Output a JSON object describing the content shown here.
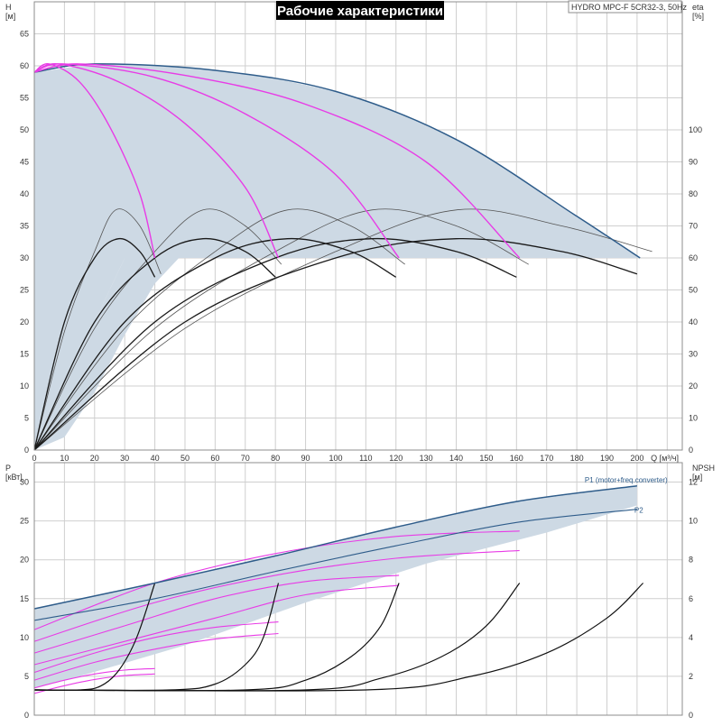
{
  "title": "Рабочие характеристики",
  "model": "HYDRO MPC-F 5CR32-3, 50Hz",
  "colors": {
    "envelope": "#cdd9e4",
    "max_curve": "#2e5c8a",
    "speed_curve": "#e83be6",
    "eta_full": "#555555",
    "eta_min": "#1a1a1a",
    "npsh": "#111111"
  },
  "chart_data": [
    {
      "id": "head",
      "type": "line",
      "xlabel": "Q [м³/ч]",
      "ylabel_left": "H\n[м]",
      "ylabel_right": "eta\n[%]",
      "xlim": [
        0,
        215
      ],
      "ylim_left": [
        0,
        70
      ],
      "ylim_right": [
        0,
        140
      ],
      "x_ticks": [
        0,
        10,
        20,
        30,
        40,
        50,
        60,
        70,
        80,
        90,
        100,
        110,
        120,
        130,
        140,
        150,
        160,
        170,
        180,
        190,
        200
      ],
      "y_ticks_left": [
        0,
        5,
        10,
        15,
        20,
        25,
        30,
        35,
        40,
        45,
        50,
        55,
        60,
        65
      ],
      "y_ticks_right": [
        0,
        10,
        20,
        30,
        40,
        50,
        60,
        70,
        80,
        90,
        100
      ],
      "grid": true,
      "envelope": {
        "upper": [
          [
            0,
            59
          ],
          [
            20,
            60.3
          ],
          [
            40,
            60
          ],
          [
            60,
            59.3
          ],
          [
            80,
            58
          ],
          [
            100,
            56
          ],
          [
            120,
            52.8
          ],
          [
            140,
            48.5
          ],
          [
            160,
            43
          ],
          [
            180,
            36.5
          ],
          [
            201,
            30
          ],
          [
            30,
            30
          ],
          [
            0,
            0
          ]
        ],
        "lower": [
          [
            0,
            0
          ],
          [
            10,
            2
          ],
          [
            20,
            9
          ],
          [
            30,
            18
          ],
          [
            40,
            26
          ],
          [
            48,
            30
          ]
        ]
      },
      "head_curves": [
        {
          "points": [
            [
              0,
              59
            ],
            [
              20,
              60.3
            ],
            [
              60,
              59.3
            ],
            [
              100,
              56
            ],
            [
              140,
              48.5
            ],
            [
              180,
              36.5
            ],
            [
              201,
              30
            ]
          ]
        },
        {
          "points": [
            [
              0,
              59
            ],
            [
              15,
              60.3
            ],
            [
              50,
              58.5
            ],
            [
              90,
              54
            ],
            [
              130,
              45
            ],
            [
              161,
              30
            ]
          ]
        },
        {
          "points": [
            [
              0,
              59
            ],
            [
              10,
              60.3
            ],
            [
              40,
              58.2
            ],
            [
              70,
              52.5
            ],
            [
              100,
              43
            ],
            [
              121,
              30
            ]
          ]
        },
        {
          "points": [
            [
              0,
              59
            ],
            [
              8,
              60.3
            ],
            [
              28,
              57.5
            ],
            [
              50,
              51
            ],
            [
              70,
              41
            ],
            [
              81,
              30
            ]
          ]
        },
        {
          "points": [
            [
              0,
              59
            ],
            [
              5,
              60.3
            ],
            [
              15,
              57.5
            ],
            [
              25,
              50.5
            ],
            [
              35,
              40
            ],
            [
              40,
              30
            ]
          ]
        }
      ],
      "eta_full_curves": [
        {
          "points": [
            [
              0,
              0
            ],
            [
              10,
              37
            ],
            [
              20,
              62
            ],
            [
              27,
              75
            ],
            [
              35,
              70
            ],
            [
              42,
              55
            ]
          ]
        },
        {
          "points": [
            [
              0,
              0
            ],
            [
              20,
              38
            ],
            [
              40,
              62
            ],
            [
              56,
              75
            ],
            [
              70,
              70
            ],
            [
              82,
              58
            ]
          ]
        },
        {
          "points": [
            [
              0,
              0
            ],
            [
              30,
              38
            ],
            [
              60,
              62
            ],
            [
              84,
              75
            ],
            [
              105,
              70
            ],
            [
              123,
              58
            ]
          ]
        },
        {
          "points": [
            [
              0,
              0
            ],
            [
              40,
              38
            ],
            [
              80,
              62
            ],
            [
              112,
              75
            ],
            [
              140,
              70
            ],
            [
              164,
              58
            ]
          ]
        },
        {
          "points": [
            [
              0,
              0
            ],
            [
              50,
              38
            ],
            [
              100,
              62
            ],
            [
              140,
              75
            ],
            [
              175,
              70
            ],
            [
              205,
              62
            ]
          ]
        }
      ],
      "eta_min_curves": [
        {
          "points": [
            [
              0,
              0
            ],
            [
              10,
              40
            ],
            [
              20,
              60
            ],
            [
              28,
              66
            ],
            [
              35,
              62
            ],
            [
              40,
              54
            ]
          ]
        },
        {
          "points": [
            [
              0,
              0
            ],
            [
              20,
              40
            ],
            [
              40,
              60
            ],
            [
              56,
              66
            ],
            [
              70,
              62
            ],
            [
              80,
              54
            ]
          ]
        },
        {
          "points": [
            [
              0,
              0
            ],
            [
              30,
              40
            ],
            [
              60,
              60
            ],
            [
              84,
              66
            ],
            [
              105,
              62
            ],
            [
              120,
              54
            ]
          ]
        },
        {
          "points": [
            [
              0,
              0
            ],
            [
              40,
              40
            ],
            [
              80,
              60
            ],
            [
              112,
              66
            ],
            [
              140,
              62
            ],
            [
              160,
              54
            ]
          ]
        },
        {
          "points": [
            [
              0,
              0
            ],
            [
              50,
              40
            ],
            [
              100,
              60
            ],
            [
              140,
              66
            ],
            [
              175,
              62
            ],
            [
              200,
              55
            ]
          ]
        }
      ]
    },
    {
      "id": "power",
      "type": "line",
      "xlabel": "",
      "ylabel_left": "P\n[кВт]",
      "ylabel_right": "NPSH\n[м]",
      "xlim": [
        0,
        215
      ],
      "ylim_left": [
        0,
        32.5
      ],
      "ylim_right": [
        0,
        13
      ],
      "y_ticks_left": [
        0,
        5,
        10,
        15,
        20,
        25,
        30
      ],
      "y_ticks_right": [
        0,
        2,
        4,
        6,
        8,
        10,
        12
      ],
      "grid": true,
      "series_labels": [
        {
          "name": "P1 (motor+freq.converter)",
          "series_index": 0
        },
        {
          "name": "P2",
          "series_index": 1
        }
      ],
      "series": [
        {
          "name": "P1 (motor+freq.converter)",
          "points": [
            [
              0,
              13.7
            ],
            [
              40,
              17
            ],
            [
              80,
              20.5
            ],
            [
              120,
              24.2
            ],
            [
              160,
              27.5
            ],
            [
              200,
              29.5
            ]
          ]
        },
        {
          "name": "P2",
          "points": [
            [
              0,
              12.2
            ],
            [
              40,
              15
            ],
            [
              80,
              18.5
            ],
            [
              120,
              21.8
            ],
            [
              160,
              24.8
            ],
            [
              200,
              26.5
            ]
          ]
        }
      ],
      "envelope": {
        "upper": [
          [
            0,
            13.7
          ],
          [
            40,
            17
          ],
          [
            80,
            20.5
          ],
          [
            120,
            24.2
          ],
          [
            160,
            27.5
          ],
          [
            200,
            29.5
          ],
          [
            200,
            27
          ],
          [
            170,
            23.5
          ],
          [
            130,
            19.5
          ],
          [
            90,
            14.5
          ],
          [
            50,
            9
          ],
          [
            15,
            5
          ],
          [
            0,
            3.5
          ]
        ]
      },
      "power_curves": [
        {
          "points": [
            [
              0,
              11
            ],
            [
              40,
              17
            ],
            [
              80,
              20.8
            ],
            [
              120,
              23
            ],
            [
              161,
              23.7
            ]
          ]
        },
        {
          "points": [
            [
              0,
              9.5
            ],
            [
              40,
              14.5
            ],
            [
              80,
              18
            ],
            [
              120,
              20.2
            ],
            [
              161,
              21.2
            ]
          ]
        },
        {
          "points": [
            [
              0,
              8
            ],
            [
              30,
              11.5
            ],
            [
              60,
              15
            ],
            [
              90,
              17.2
            ],
            [
              121,
              18
            ]
          ]
        },
        {
          "points": [
            [
              0,
              6.5
            ],
            [
              30,
              9.5
            ],
            [
              60,
              12.5
            ],
            [
              90,
              15.5
            ],
            [
              121,
              16.7
            ]
          ]
        },
        {
          "points": [
            [
              0,
              5.5
            ],
            [
              20,
              8
            ],
            [
              40,
              10
            ],
            [
              60,
              11.3
            ],
            [
              81,
              12
            ]
          ]
        },
        {
          "points": [
            [
              0,
              4.5
            ],
            [
              20,
              6.8
            ],
            [
              40,
              8.5
            ],
            [
              60,
              9.8
            ],
            [
              81,
              10.5
            ]
          ]
        },
        {
          "points": [
            [
              0,
              3.5
            ],
            [
              10,
              4.5
            ],
            [
              20,
              5.3
            ],
            [
              30,
              5.8
            ],
            [
              40,
              6
            ]
          ]
        },
        {
          "points": [
            [
              0,
              2.8
            ],
            [
              10,
              3.8
            ],
            [
              20,
              4.6
            ],
            [
              30,
              5.1
            ],
            [
              40,
              5.3
            ]
          ]
        }
      ],
      "npsh_curves": [
        {
          "points": [
            [
              0,
              1.3
            ],
            [
              15,
              1.3
            ],
            [
              22,
              1.5
            ],
            [
              28,
              2.3
            ],
            [
              34,
              4
            ],
            [
              40,
              6.8
            ]
          ]
        },
        {
          "points": [
            [
              0,
              1.3
            ],
            [
              45,
              1.3
            ],
            [
              60,
              1.6
            ],
            [
              70,
              2.6
            ],
            [
              76,
              4
            ],
            [
              81,
              6.8
            ]
          ]
        },
        {
          "points": [
            [
              0,
              1.3
            ],
            [
              70,
              1.3
            ],
            [
              90,
              1.8
            ],
            [
              105,
              3
            ],
            [
              115,
              4.6
            ],
            [
              121,
              6.8
            ]
          ]
        },
        {
          "points": [
            [
              0,
              1.3
            ],
            [
              90,
              1.3
            ],
            [
              115,
              1.9
            ],
            [
              135,
              3
            ],
            [
              150,
              4.6
            ],
            [
              161,
              6.8
            ]
          ]
        },
        {
          "points": [
            [
              0,
              1.3
            ],
            [
              110,
              1.3
            ],
            [
              145,
              2
            ],
            [
              170,
              3.2
            ],
            [
              190,
              5
            ],
            [
              202,
              6.8
            ]
          ]
        }
      ]
    }
  ]
}
